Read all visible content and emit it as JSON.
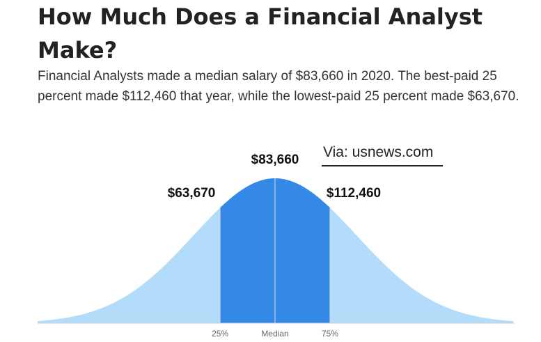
{
  "header": {
    "title": "How Much Does a Financial Analyst Make?",
    "description": "Financial Analysts made a median salary of $83,660 in 2020. The best-paid 25 percent made $112,460 that year, while the lowest-paid 25 percent made $63,670."
  },
  "source_note": "Via: usnews.com",
  "chart_data": {
    "type": "area",
    "x": [
      "25%",
      "Median",
      "75%"
    ],
    "values": [
      63670,
      83660,
      112460
    ],
    "value_labels": [
      "$63,670",
      "$83,660",
      "$112,460"
    ],
    "tick_labels": [
      "25%",
      "Median",
      "75%"
    ],
    "grid": false,
    "colors": {
      "middle": "#3589e6",
      "outer": "#b3dcfb",
      "line": "#d8d8d8"
    }
  }
}
